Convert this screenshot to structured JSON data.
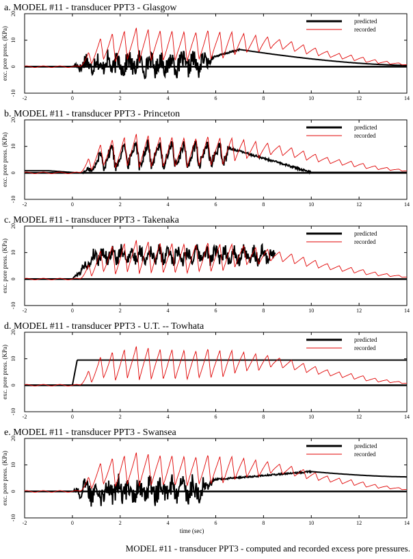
{
  "caption": "MODEL #11 - transducer PPT3 - computed and recorded excess pore pressures.",
  "colors": {
    "predicted": "#000000",
    "recorded": "#e00000",
    "axis": "#000000"
  },
  "chart_data": [
    {
      "type": "line",
      "title": "a. MODEL #11 - transducer PPT3 - Glasgow",
      "ylabel": "exc. pore press. (KPa)",
      "xlabel": "",
      "xlim": [
        -2,
        14
      ],
      "ylim": [
        -10,
        20
      ],
      "xticks": [
        "-2",
        "0",
        "2",
        "4",
        "6",
        "8",
        "10",
        "12",
        "14"
      ],
      "yticks": [
        "-10",
        "0",
        "10",
        "20"
      ],
      "legend": "top-right",
      "series": [
        {
          "name": "predicted",
          "role": "predicted",
          "style": "noisy-then-decay",
          "onset": 0.0,
          "noise_end": 6.0,
          "noise_mean": 1.0,
          "noise_amp": 3.5,
          "peak_x": 7.0,
          "peak_y": 6.5,
          "end_y": 0.5
        },
        {
          "name": "recorded",
          "role": "recorded"
        }
      ]
    },
    {
      "type": "line",
      "title": "b. MODEL #11 - transducer PPT3 - Princeton",
      "ylabel": "exc. pore press. (KPa)",
      "xlabel": "",
      "xlim": [
        -2,
        14
      ],
      "ylim": [
        -10,
        20
      ],
      "xticks": [
        "-2",
        "0",
        "2",
        "4",
        "6",
        "8",
        "10",
        "12",
        "14"
      ],
      "yticks": [
        "-10",
        "0",
        "10",
        "20"
      ],
      "legend": "top-right",
      "series": [
        {
          "name": "predicted",
          "role": "predicted",
          "style": "tracking-then-decay",
          "pre_level": 0.8,
          "onset": 0.3,
          "noise_amp": 2.0,
          "track_end": 6.5,
          "decay_to": 10.0,
          "end_y": 0.2
        },
        {
          "name": "recorded",
          "role": "recorded"
        }
      ]
    },
    {
      "type": "line",
      "title": "c. MODEL #11 - transducer PPT3 - Takenaka",
      "ylabel": "exc. pore press. (KPa)",
      "xlabel": "",
      "xlim": [
        -2,
        14
      ],
      "ylim": [
        -10,
        20
      ],
      "xticks": [
        "-2",
        "0",
        "2",
        "4",
        "6",
        "8",
        "10",
        "12",
        "14"
      ],
      "yticks": [
        "-10",
        "0",
        "10",
        "20"
      ],
      "legend": "top-right",
      "series": [
        {
          "name": "predicted",
          "role": "predicted",
          "style": "noisy-plateau",
          "onset": 0.0,
          "plateau": 9.0,
          "noise_amp": 2.5,
          "end_x": 8.5
        },
        {
          "name": "recorded",
          "role": "recorded"
        }
      ]
    },
    {
      "type": "line",
      "title": "d. MODEL #11 - transducer PPT3 - U.T. -- Towhata",
      "ylabel": "exc. pore press. (KPa)",
      "xlabel": "",
      "xlim": [
        -2,
        14
      ],
      "ylim": [
        -10,
        20
      ],
      "xticks": [
        "-2",
        "0",
        "2",
        "4",
        "6",
        "8",
        "10",
        "12",
        "14"
      ],
      "yticks": [
        "-10",
        "0",
        "10",
        "20"
      ],
      "legend": "top-right",
      "series": [
        {
          "name": "predicted",
          "role": "predicted",
          "style": "step",
          "onset": 0.0,
          "rise_end": 0.2,
          "level": 9.5
        },
        {
          "name": "recorded",
          "role": "recorded"
        }
      ]
    },
    {
      "type": "line",
      "title": "e. MODEL #11 - transducer PPT3 - Swansea",
      "ylabel": "exc. pore press. (KPa)",
      "xlabel": "time (sec)",
      "xlim": [
        -2,
        14
      ],
      "ylim": [
        -10,
        20
      ],
      "xticks": [
        "-2",
        "0",
        "2",
        "4",
        "6",
        "8",
        "10",
        "12",
        "14"
      ],
      "yticks": [
        "-10",
        "0",
        "10",
        "20"
      ],
      "legend": "top-right",
      "series": [
        {
          "name": "predicted",
          "role": "predicted",
          "style": "noisy-then-slow",
          "onset": 0.0,
          "noise_end": 6.0,
          "noise_mean": 0.5,
          "noise_amp": 4.0,
          "peak_x": 10.0,
          "peak_y": 7.5,
          "end_y": 5.5
        },
        {
          "name": "recorded",
          "role": "recorded"
        }
      ]
    }
  ],
  "recorded_wave": {
    "x": [
      -2.0,
      -1.0,
      0.0,
      0.4,
      0.8,
      1.2,
      1.6,
      2.0,
      2.4,
      2.8,
      3.2,
      3.6,
      4.0,
      4.4,
      4.8,
      5.2,
      5.6,
      6.0,
      6.4,
      6.8,
      7.2,
      7.6,
      8.0,
      8.4,
      8.8,
      9.2,
      9.6,
      10.0,
      10.4,
      10.8,
      11.2,
      11.6,
      12.0,
      12.4,
      12.8,
      13.2,
      13.6,
      14.0
    ],
    "peaks": [
      0.0,
      0.0,
      0.0,
      2.0,
      7.0,
      11.0,
      12.5,
      13.0,
      14.0,
      15.0,
      14.0,
      13.5,
      14.0,
      13.0,
      13.5,
      13.0,
      14.0,
      13.0,
      13.5,
      13.0,
      12.5,
      12.0,
      11.5,
      11.0,
      10.0,
      9.5,
      8.5,
      7.5,
      6.5,
      5.5,
      5.0,
      4.5,
      4.0,
      3.0,
      2.5,
      2.0,
      1.5,
      1.0
    ],
    "troughs": [
      0.0,
      0.0,
      0.0,
      0.0,
      1.0,
      3.0,
      2.0,
      1.5,
      3.0,
      2.0,
      2.0,
      3.0,
      1.5,
      2.5,
      2.0,
      3.0,
      2.0,
      3.5,
      3.0,
      4.5,
      5.5,
      5.0,
      6.0,
      7.0,
      6.5,
      6.0,
      5.0,
      4.5,
      4.0,
      3.5,
      3.0,
      2.5,
      2.0,
      1.5,
      1.2,
      1.0,
      0.8,
      0.5
    ]
  }
}
